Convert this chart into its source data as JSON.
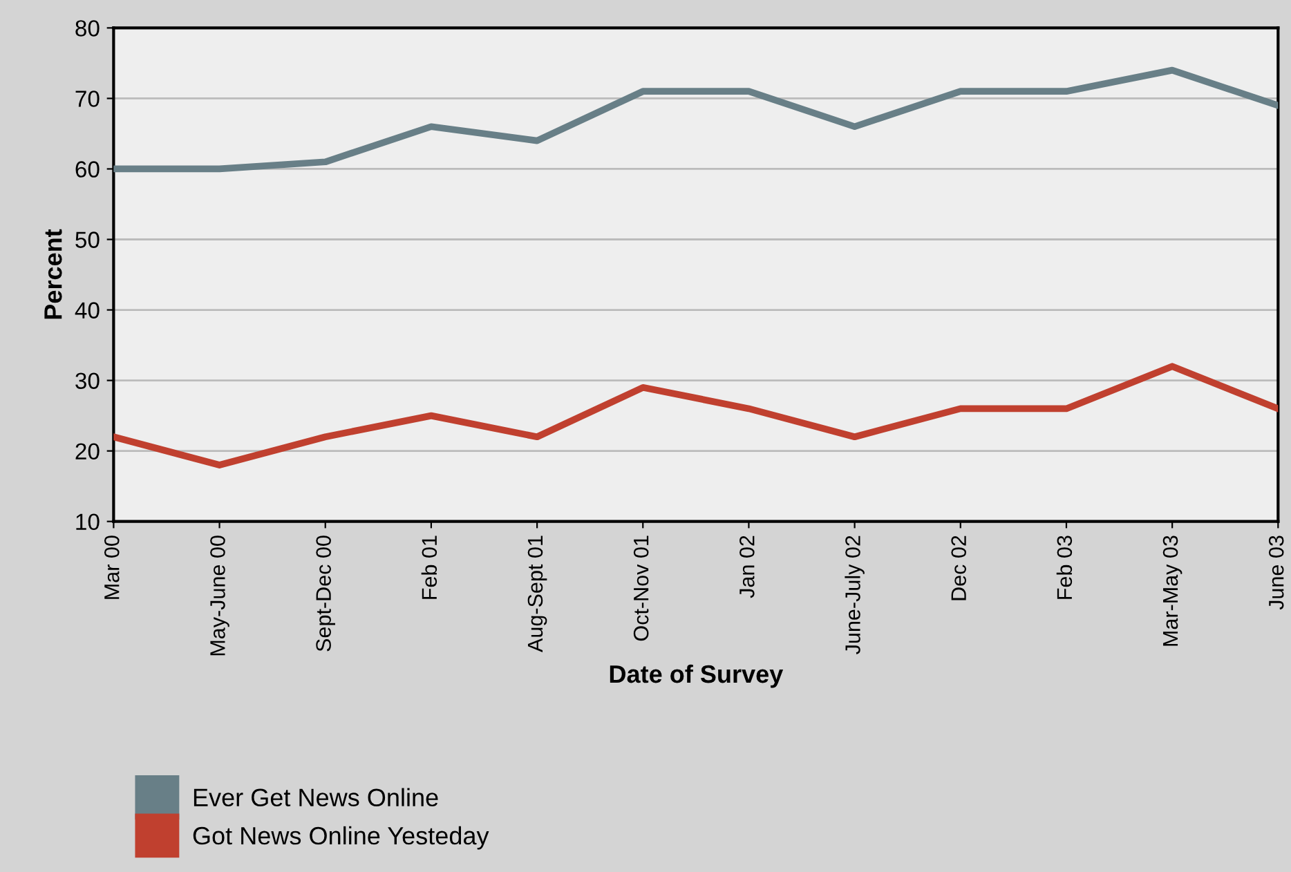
{
  "chart_data": {
    "type": "line",
    "xlabel": "Date of Survey",
    "ylabel": "Percent",
    "categories": [
      "Mar 00",
      "May-June 00",
      "Sept-Dec 00",
      "Feb 01",
      "Aug-Sept 01",
      "Oct-Nov 01",
      "Jan 02",
      "June-July 02",
      "Dec 02",
      "Feb 03",
      "Mar-May 03",
      "June 03"
    ],
    "series": [
      {
        "name": "Ever Get News Online",
        "color": "#687f87",
        "values": [
          60,
          60,
          61,
          66,
          64,
          71,
          71,
          66,
          71,
          71,
          74,
          69
        ]
      },
      {
        "name": "Got News Online Yesteday",
        "color": "#c0402f",
        "values": [
          22,
          18,
          22,
          25,
          22,
          29,
          26,
          22,
          26,
          26,
          32,
          26
        ]
      }
    ],
    "ylim": [
      10,
      80
    ],
    "yticks": [
      10,
      20,
      30,
      40,
      50,
      60,
      70,
      80
    ],
    "grid": "y",
    "legend": "bottom left",
    "marker": "none",
    "line_style": "solid"
  }
}
